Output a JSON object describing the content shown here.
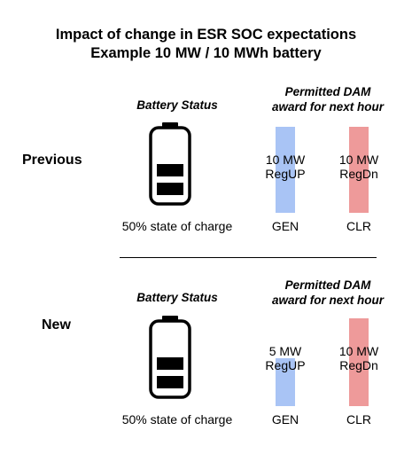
{
  "title": {
    "line1": "Impact of change in ESR SOC expectations",
    "line2": "Example 10 MW / 10 MWh battery"
  },
  "colors": {
    "gen_bar": "#a9c4f5",
    "clr_bar": "#ee9a9a",
    "battery_fill": "#000000"
  },
  "sections": [
    {
      "label": "Previous",
      "battery_heading": "Battery Status",
      "award_heading_line1": "Permitted DAM",
      "award_heading_line2": "award for next hour",
      "battery_level_bars_filled": 2,
      "battery_level_bars_total": 4,
      "state_of_charge": "50% state of charge",
      "gen": {
        "amount": "10 MW",
        "product": "RegUP",
        "label": "GEN"
      },
      "clr": {
        "amount": "10 MW",
        "product": "RegDn",
        "label": "CLR"
      }
    },
    {
      "label": "New",
      "battery_heading": "Battery Status",
      "award_heading_line1": "Permitted DAM",
      "award_heading_line2": "award for next hour",
      "battery_level_bars_filled": 2,
      "battery_level_bars_total": 4,
      "state_of_charge": "50% state of charge",
      "gen": {
        "amount": "5 MW",
        "product": "RegUP",
        "label": "GEN"
      },
      "clr": {
        "amount": "10 MW",
        "product": "RegDn",
        "label": "CLR"
      }
    }
  ]
}
